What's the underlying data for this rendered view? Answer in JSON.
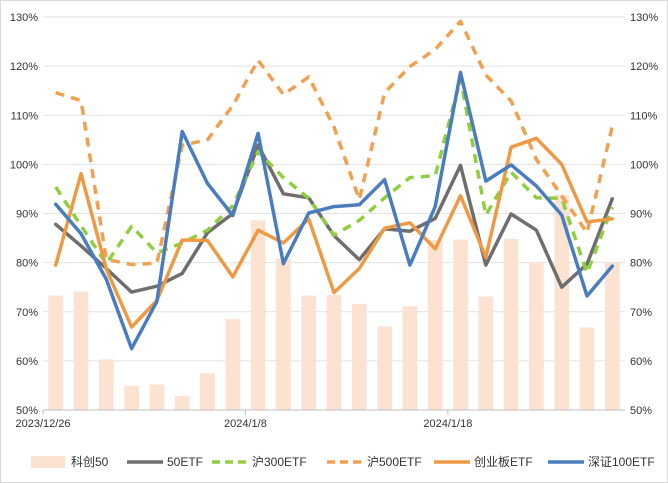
{
  "chart_data": {
    "type": "line",
    "title": "",
    "xlabel": "",
    "ylabel": "",
    "ylim": [
      50,
      130
    ],
    "y_ticks": [
      50,
      60,
      70,
      80,
      90,
      100,
      110,
      120,
      130
    ],
    "y_tick_suffix": "%",
    "grid": "horizontal",
    "legend_position": "bottom",
    "x_tick_labels": [
      {
        "index": 0,
        "label": "2023/12/26"
      },
      {
        "index": 8,
        "label": "2024/1/8"
      },
      {
        "index": 16,
        "label": "2024/1/18"
      }
    ],
    "bar_series": {
      "name": "科创50",
      "color": "#fbe2d1",
      "values": [
        73.3,
        74.1,
        60.3,
        54.9,
        55.2,
        52.8,
        57.5,
        68.5,
        88.6,
        80.8,
        73.3,
        73.4,
        71.6,
        67.0,
        71.1,
        84.6,
        84.7,
        73.1,
        84.8,
        80.1,
        93.8,
        66.8,
        79.9
      ]
    },
    "series": [
      {
        "name": "50ETF",
        "color": "#6e6e6e",
        "dash": "solid",
        "values": [
          87.8,
          83.4,
          78.8,
          74.0,
          75.2,
          77.8,
          86.1,
          90.0,
          103.9,
          94.0,
          93.2,
          85.5,
          80.6,
          86.9,
          86.4,
          89.0,
          99.8,
          79.5,
          89.9,
          86.6,
          75.0,
          79.7,
          93.0
        ]
      },
      {
        "name": "沪300ETF",
        "color": "#8fce3f",
        "dash": "dashed",
        "values": [
          95.4,
          87.5,
          79.8,
          87.4,
          82.0,
          84.0,
          86.6,
          91.6,
          102.6,
          97.3,
          93.1,
          85.6,
          88.6,
          93.2,
          97.3,
          97.7,
          117.5,
          89.7,
          98.4,
          93.2,
          93.1,
          77.9,
          91.3
        ]
      },
      {
        "name": "沪500ETF",
        "color": "#f0a050",
        "dash": "dashed",
        "values": [
          114.6,
          113.0,
          80.7,
          79.6,
          79.9,
          103.9,
          105.0,
          112.0,
          121.2,
          114.2,
          117.8,
          107.6,
          92.8,
          114.6,
          119.9,
          123.4,
          129.1,
          118.2,
          112.9,
          101.0,
          93.6,
          86.1,
          107.8
        ]
      },
      {
        "name": "创业板ETF",
        "color": "#ee9a45",
        "dash": "solid",
        "values": [
          79.5,
          98.1,
          78.7,
          66.9,
          72.3,
          84.6,
          84.5,
          77.1,
          86.6,
          84.0,
          88.9,
          73.9,
          78.8,
          87.0,
          88.1,
          82.8,
          93.6,
          81.1,
          103.5,
          105.3,
          100.0,
          88.3,
          88.9
        ]
      },
      {
        "name": "深证100ETF",
        "color": "#4a7dbf",
        "dash": "solid",
        "values": [
          91.9,
          85.9,
          76.6,
          62.5,
          72.1,
          106.7,
          96.1,
          89.6,
          106.3,
          79.8,
          90.1,
          91.4,
          91.8,
          96.9,
          79.5,
          91.4,
          118.7,
          96.6,
          99.9,
          95.6,
          89.7,
          73.2,
          79.3
        ]
      }
    ]
  }
}
